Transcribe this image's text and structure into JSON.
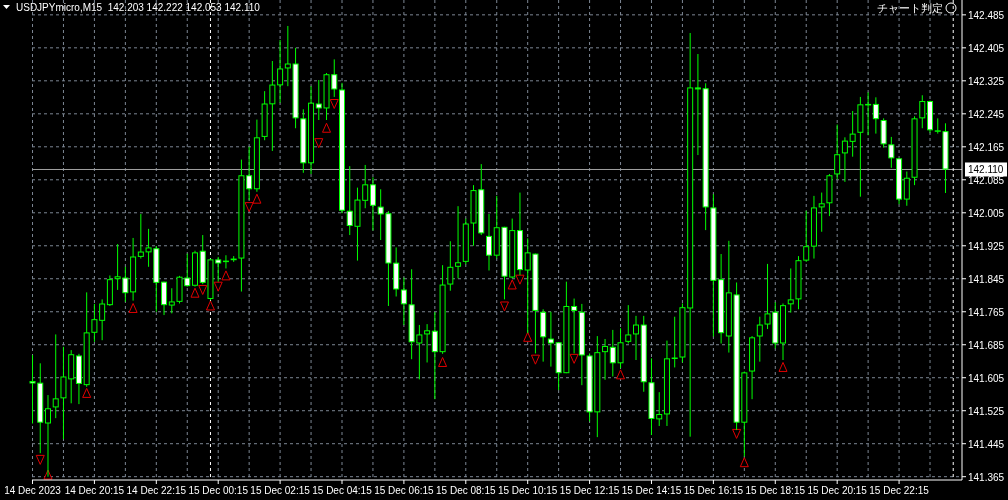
{
  "chart_data": {
    "type": "candlestick",
    "title": "USDJPYmicro,M15  142.203 142.222 142.053 142.110",
    "annotations": [
      "チャート判定"
    ],
    "color": "#00ff00",
    "grid": true,
    "xlim": [
      "2023-12-14T18:14",
      "2023-12-16T00:17"
    ],
    "ylim": [
      141.357,
      142.521
    ],
    "yticks": [
      142.485,
      142.405,
      142.325,
      142.245,
      142.165,
      142.085,
      142.005,
      141.925,
      141.845,
      141.765,
      141.685,
      141.605,
      141.525,
      141.445,
      141.365
    ],
    "xticks": [
      {
        "value": "2023-12-14T18:15",
        "label": "14 Dec 2023"
      },
      {
        "value": "2023-12-14T19:15",
        "label": null
      },
      {
        "value": "2023-12-14T20:15",
        "label": "14 Dec 20:15"
      },
      {
        "value": "2023-12-14T21:15",
        "label": null
      },
      {
        "value": "2023-12-14T22:15",
        "label": "14 Dec 22:15"
      },
      {
        "value": "2023-12-14T23:15",
        "label": null
      },
      {
        "value": "2023-12-15T00:15",
        "label": "15 Dec 00:15"
      },
      {
        "value": "2023-12-15T01:15",
        "label": null
      },
      {
        "value": "2023-12-15T02:15",
        "label": "15 Dec 02:15"
      },
      {
        "value": "2023-12-15T03:15",
        "label": null
      },
      {
        "value": "2023-12-15T04:15",
        "label": "15 Dec 04:15"
      },
      {
        "value": "2023-12-15T05:15",
        "label": null
      },
      {
        "value": "2023-12-15T06:15",
        "label": "15 Dec 06:15"
      },
      {
        "value": "2023-12-15T07:15",
        "label": null
      },
      {
        "value": "2023-12-15T08:15",
        "label": "15 Dec 08:15"
      },
      {
        "value": "2023-12-15T09:15",
        "label": null
      },
      {
        "value": "2023-12-15T10:15",
        "label": "15 Dec 10:15"
      },
      {
        "value": "2023-12-15T11:15",
        "label": null
      },
      {
        "value": "2023-12-15T12:15",
        "label": "15 Dec 12:15"
      },
      {
        "value": "2023-12-15T13:15",
        "label": null
      },
      {
        "value": "2023-12-15T14:15",
        "label": "15 Dec 14:15"
      },
      {
        "value": "2023-12-15T15:15",
        "label": null
      },
      {
        "value": "2023-12-15T16:15",
        "label": "15 Dec 16:15"
      },
      {
        "value": "2023-12-15T17:15",
        "label": null
      },
      {
        "value": "2023-12-15T18:15",
        "label": "15 Dec 18:15"
      },
      {
        "value": "2023-12-15T19:15",
        "label": null
      },
      {
        "value": "2023-12-15T20:15",
        "label": "15 Dec 20:15"
      },
      {
        "value": "2023-12-15T21:15",
        "label": null
      },
      {
        "value": "2023-12-15T22:15",
        "label": "15 Dec 22:15"
      },
      {
        "value": "2023-12-15T23:15",
        "label": null
      }
    ],
    "ref_lines": [
      {
        "axis": "y",
        "value": 142.11,
        "label": "142.110",
        "color": "#a0a0a0",
        "line_style": "solid"
      },
      {
        "axis": "x",
        "value": "2023-12-15T00:00",
        "label": null,
        "color": "#ffffff",
        "line_style": "dashed"
      },
      {
        "axis": "x",
        "value": "2023-12-16T00:00",
        "label": null,
        "color": "#ffffff",
        "line_style": "dashed"
      }
    ],
    "x": [
      "2023-12-14T18:15",
      "2023-12-14T18:30",
      "2023-12-14T18:45",
      "2023-12-14T19:00",
      "2023-12-14T19:15",
      "2023-12-14T19:30",
      "2023-12-14T19:45",
      "2023-12-14T20:00",
      "2023-12-14T20:15",
      "2023-12-14T20:30",
      "2023-12-14T20:45",
      "2023-12-14T21:00",
      "2023-12-14T21:15",
      "2023-12-14T21:30",
      "2023-12-14T21:45",
      "2023-12-14T22:00",
      "2023-12-14T22:15",
      "2023-12-14T22:30",
      "2023-12-14T22:45",
      "2023-12-14T23:00",
      "2023-12-14T23:15",
      "2023-12-14T23:30",
      "2023-12-14T23:45",
      "2023-12-15T00:00",
      "2023-12-15T00:15",
      "2023-12-15T00:30",
      "2023-12-15T00:45",
      "2023-12-15T01:00",
      "2023-12-15T01:15",
      "2023-12-15T01:30",
      "2023-12-15T01:45",
      "2023-12-15T02:00",
      "2023-12-15T02:15",
      "2023-12-15T02:30",
      "2023-12-15T02:45",
      "2023-12-15T03:00",
      "2023-12-15T03:15",
      "2023-12-15T03:30",
      "2023-12-15T03:45",
      "2023-12-15T04:00",
      "2023-12-15T04:15",
      "2023-12-15T04:30",
      "2023-12-15T04:45",
      "2023-12-15T05:00",
      "2023-12-15T05:15",
      "2023-12-15T05:30",
      "2023-12-15T05:45",
      "2023-12-15T06:00",
      "2023-12-15T06:15",
      "2023-12-15T06:30",
      "2023-12-15T06:45",
      "2023-12-15T07:00",
      "2023-12-15T07:15",
      "2023-12-15T07:30",
      "2023-12-15T07:45",
      "2023-12-15T08:00",
      "2023-12-15T08:15",
      "2023-12-15T08:30",
      "2023-12-15T08:45",
      "2023-12-15T09:00",
      "2023-12-15T09:15",
      "2023-12-15T09:30",
      "2023-12-15T09:45",
      "2023-12-15T10:00",
      "2023-12-15T10:15",
      "2023-12-15T10:30",
      "2023-12-15T10:45",
      "2023-12-15T11:00",
      "2023-12-15T11:15",
      "2023-12-15T11:30",
      "2023-12-15T11:45",
      "2023-12-15T12:00",
      "2023-12-15T12:15",
      "2023-12-15T12:30",
      "2023-12-15T12:45",
      "2023-12-15T13:00",
      "2023-12-15T13:15",
      "2023-12-15T13:30",
      "2023-12-15T13:45",
      "2023-12-15T14:00",
      "2023-12-15T14:15",
      "2023-12-15T14:30",
      "2023-12-15T14:45",
      "2023-12-15T15:00",
      "2023-12-15T15:15",
      "2023-12-15T15:30",
      "2023-12-15T15:45",
      "2023-12-15T16:00",
      "2023-12-15T16:15",
      "2023-12-15T16:30",
      "2023-12-15T16:45",
      "2023-12-15T17:00",
      "2023-12-15T17:15",
      "2023-12-15T17:30",
      "2023-12-15T17:45",
      "2023-12-15T18:00",
      "2023-12-15T18:15",
      "2023-12-15T18:30",
      "2023-12-15T18:45",
      "2023-12-15T19:00",
      "2023-12-15T19:15",
      "2023-12-15T19:30",
      "2023-12-15T19:45",
      "2023-12-15T20:00",
      "2023-12-15T20:15",
      "2023-12-15T20:30",
      "2023-12-15T20:45",
      "2023-12-15T21:00",
      "2023-12-15T21:15",
      "2023-12-15T21:30",
      "2023-12-15T21:45",
      "2023-12-15T22:00",
      "2023-12-15T22:15",
      "2023-12-15T22:30",
      "2023-12-15T22:45",
      "2023-12-15T23:00",
      "2023-12-15T23:15",
      "2023-12-15T23:30",
      "2023-12-15T23:45"
    ],
    "ohlc": [
      [
        141.597,
        141.66,
        141.494,
        141.591
      ],
      [
        141.593,
        141.64,
        141.422,
        141.496
      ],
      [
        141.494,
        141.563,
        141.365,
        141.531
      ],
      [
        141.533,
        141.71,
        141.507,
        141.555
      ],
      [
        141.555,
        141.68,
        141.456,
        141.608
      ],
      [
        141.601,
        141.672,
        141.543,
        141.662
      ],
      [
        141.659,
        141.663,
        141.541,
        141.59
      ],
      [
        141.587,
        141.812,
        141.583,
        141.715
      ],
      [
        141.714,
        141.784,
        141.692,
        141.747
      ],
      [
        141.743,
        141.795,
        141.696,
        141.785
      ],
      [
        141.781,
        141.853,
        141.779,
        141.844
      ],
      [
        141.844,
        141.929,
        141.818,
        141.851
      ],
      [
        141.848,
        141.874,
        141.789,
        141.81
      ],
      [
        141.812,
        141.944,
        141.792,
        141.899
      ],
      [
        141.898,
        142.002,
        141.894,
        141.911
      ],
      [
        141.909,
        141.966,
        141.874,
        141.921
      ],
      [
        141.919,
        141.924,
        141.765,
        141.835
      ],
      [
        141.838,
        141.838,
        141.757,
        141.781
      ],
      [
        141.78,
        141.822,
        141.761,
        141.79
      ],
      [
        141.789,
        141.852,
        141.785,
        141.85
      ],
      [
        141.848,
        141.906,
        141.826,
        141.827
      ],
      [
        141.828,
        141.913,
        141.826,
        141.909
      ],
      [
        141.913,
        141.951,
        141.832,
        141.835
      ],
      [
        141.796,
        141.894,
        141.793,
        141.892
      ],
      [
        141.892,
        141.898,
        141.838,
        141.882
      ],
      [
        141.886,
        141.902,
        141.87,
        141.889
      ],
      [
        141.89,
        141.9,
        141.886,
        141.894
      ],
      [
        141.894,
        142.134,
        141.814,
        142.096
      ],
      [
        142.096,
        142.165,
        142.036,
        142.062
      ],
      [
        142.062,
        142.231,
        142.056,
        142.188
      ],
      [
        142.189,
        142.3,
        142.181,
        142.27
      ],
      [
        142.268,
        142.373,
        142.155,
        142.316
      ],
      [
        142.314,
        142.424,
        142.272,
        142.355
      ],
      [
        142.355,
        142.458,
        142.312,
        142.367
      ],
      [
        142.367,
        142.405,
        142.21,
        142.234
      ],
      [
        142.234,
        142.256,
        142.102,
        142.125
      ],
      [
        142.125,
        142.312,
        142.099,
        142.272
      ],
      [
        142.27,
        142.327,
        142.23,
        142.258
      ],
      [
        142.258,
        142.344,
        142.23,
        142.341
      ],
      [
        142.341,
        142.377,
        142.286,
        142.304
      ],
      [
        142.304,
        142.32,
        142.004,
        142.01
      ],
      [
        142.01,
        142.118,
        141.951,
        141.973
      ],
      [
        141.971,
        142.066,
        141.889,
        142.037
      ],
      [
        142.034,
        142.121,
        142.016,
        142.074
      ],
      [
        142.074,
        142.091,
        141.962,
        142.022
      ],
      [
        142.02,
        142.062,
        141.939,
        142.001
      ],
      [
        142.004,
        142.009,
        141.779,
        141.882
      ],
      [
        141.884,
        141.921,
        141.802,
        141.819
      ],
      [
        141.819,
        141.848,
        141.733,
        141.783
      ],
      [
        141.783,
        141.868,
        141.65,
        141.691
      ],
      [
        141.688,
        141.733,
        141.601,
        141.71
      ],
      [
        141.71,
        141.735,
        141.642,
        141.72
      ],
      [
        141.719,
        141.764,
        141.553,
        141.667
      ],
      [
        141.667,
        141.878,
        141.663,
        141.831
      ],
      [
        141.831,
        141.936,
        141.816,
        141.874
      ],
      [
        141.874,
        142.021,
        141.846,
        141.885
      ],
      [
        141.886,
        141.991,
        141.88,
        141.979
      ],
      [
        141.979,
        142.072,
        141.925,
        142.06
      ],
      [
        142.062,
        142.123,
        141.951,
        141.955
      ],
      [
        141.949,
        142.002,
        141.865,
        141.901
      ],
      [
        141.901,
        142.046,
        141.894,
        141.97
      ],
      [
        141.971,
        141.971,
        141.795,
        141.85
      ],
      [
        141.848,
        141.991,
        141.846,
        141.963
      ],
      [
        141.963,
        142.054,
        141.854,
        141.866
      ],
      [
        141.865,
        141.943,
        141.713,
        141.909
      ],
      [
        141.906,
        141.906,
        141.664,
        141.767
      ],
      [
        141.765,
        141.771,
        141.644,
        141.703
      ],
      [
        141.7,
        141.765,
        141.632,
        141.688
      ],
      [
        141.691,
        141.691,
        141.575,
        141.616
      ],
      [
        141.616,
        141.838,
        141.616,
        141.779
      ],
      [
        141.779,
        141.797,
        141.664,
        141.767
      ],
      [
        141.765,
        141.784,
        141.587,
        141.659
      ],
      [
        141.659,
        141.664,
        141.499,
        141.521
      ],
      [
        141.521,
        141.706,
        141.461,
        141.667
      ],
      [
        141.667,
        141.699,
        141.6,
        141.682
      ],
      [
        141.68,
        141.721,
        141.608,
        141.64
      ],
      [
        141.64,
        141.725,
        141.628,
        141.691
      ],
      [
        141.692,
        141.781,
        141.688,
        141.71
      ],
      [
        141.71,
        141.755,
        141.648,
        141.734
      ],
      [
        141.734,
        141.755,
        141.571,
        141.594
      ],
      [
        141.594,
        141.652,
        141.466,
        141.505
      ],
      [
        141.504,
        141.57,
        141.488,
        141.517
      ],
      [
        141.516,
        141.695,
        141.488,
        141.652
      ],
      [
        141.653,
        141.753,
        141.63,
        141.654
      ],
      [
        141.654,
        141.785,
        141.642,
        141.776
      ],
      [
        141.773,
        142.441,
        141.462,
        142.309
      ],
      [
        142.309,
        142.39,
        142.145,
        142.304
      ],
      [
        142.307,
        142.319,
        141.963,
        142.018
      ],
      [
        142.018,
        142.05,
        141.705,
        141.84
      ],
      [
        141.844,
        141.905,
        141.688,
        141.713
      ],
      [
        141.705,
        141.937,
        141.666,
        141.812
      ],
      [
        141.807,
        141.836,
        141.478,
        141.496
      ],
      [
        141.496,
        141.62,
        141.414,
        141.618
      ],
      [
        141.62,
        141.706,
        141.553,
        141.703
      ],
      [
        141.705,
        141.753,
        141.644,
        141.734
      ],
      [
        141.734,
        141.881,
        141.723,
        141.761
      ],
      [
        141.765,
        141.788,
        141.676,
        141.688
      ],
      [
        141.688,
        141.785,
        141.648,
        141.781
      ],
      [
        141.783,
        141.87,
        141.763,
        141.795
      ],
      [
        141.795,
        141.9,
        141.771,
        141.89
      ],
      [
        141.889,
        142.01,
        141.886,
        141.924
      ],
      [
        141.923,
        142.046,
        141.894,
        142.018
      ],
      [
        142.018,
        142.054,
        141.959,
        142.028
      ],
      [
        142.028,
        142.099,
        141.997,
        142.096
      ],
      [
        142.098,
        142.219,
        142.086,
        142.147
      ],
      [
        142.149,
        142.188,
        142.08,
        142.18
      ],
      [
        142.177,
        142.252,
        142.141,
        142.197
      ],
      [
        142.199,
        142.286,
        142.044,
        142.268
      ],
      [
        142.268,
        142.297,
        142.193,
        142.269
      ],
      [
        142.269,
        142.285,
        142.197,
        142.232
      ],
      [
        142.23,
        142.234,
        142.163,
        142.171
      ],
      [
        142.171,
        142.189,
        142.114,
        142.137
      ],
      [
        142.137,
        142.137,
        142.026,
        142.037
      ],
      [
        142.037,
        142.105,
        142.022,
        142.09
      ],
      [
        142.09,
        142.239,
        142.072,
        142.234
      ],
      [
        142.234,
        142.29,
        142.21,
        142.276
      ],
      [
        142.276,
        142.277,
        142.199,
        142.205
      ],
      [
        142.205,
        142.234,
        142.197,
        142.205
      ],
      [
        142.203,
        142.222,
        142.053,
        142.11
      ]
    ],
    "series": [
      {
        "type": "scatter",
        "color": "#e00000",
        "marker": "triangle",
        "x": [
          "2023-12-14T18:45",
          "2023-12-14T20:00",
          "2023-12-14T21:30",
          "2023-12-14T23:30",
          "2023-12-15T00:00",
          "2023-12-15T00:30",
          "2023-12-15T01:30",
          "2023-12-15T03:45",
          "2023-12-15T07:30",
          "2023-12-15T09:45",
          "2023-12-15T10:15",
          "2023-12-15T13:15",
          "2023-12-15T17:15",
          "2023-12-15T18:30"
        ],
        "values": [
          141.369,
          141.567,
          141.773,
          141.81,
          141.779,
          141.852,
          142.038,
          142.21,
          141.642,
          141.83,
          141.703,
          141.612,
          141.399,
          141.63
        ]
      },
      {
        "type": "scatter",
        "color": "#e00000",
        "marker": "triangle",
        "x": [
          "2023-12-14T18:30",
          "2023-12-14T23:45",
          "2023-12-15T00:15",
          "2023-12-15T01:15",
          "2023-12-15T03:30",
          "2023-12-15T04:00",
          "2023-12-15T09:30",
          "2023-12-15T10:00",
          "2023-12-15T10:30",
          "2023-12-15T11:45",
          "2023-12-15T17:00"
        ],
        "values": [
          141.407,
          141.819,
          141.827,
          142.02,
          142.175,
          142.27,
          141.779,
          141.844,
          141.65,
          141.652,
          141.47
        ]
      }
    ]
  }
}
